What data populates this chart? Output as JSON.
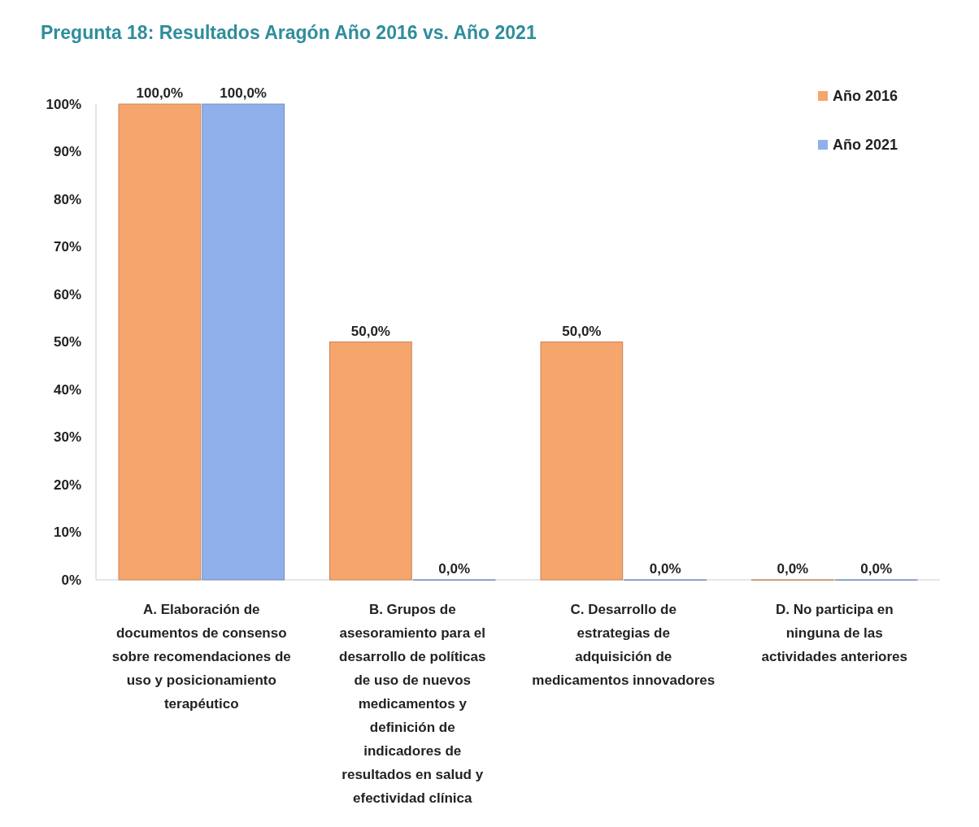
{
  "chart_data": {
    "type": "bar",
    "title": "Pregunta 18: Resultados Aragón Año 2016 vs. Año 2021",
    "categories": [
      "A. Elaboración de documentos de consenso sobre recomendaciones de uso y posicionamiento terapéutico",
      "B. Grupos de asesoramiento para el desarrollo de políticas de uso de nuevos medicamentos y definición de indicadores de resultados en salud y efectividad clínica",
      "C. Desarrollo de estrategias de adquisición de medicamentos innovadores",
      "D. No participa en ninguna de las actividades anteriores"
    ],
    "series": [
      {
        "name": "Año 2016",
        "color": "#f6a56c",
        "values": [
          100,
          50,
          50,
          0
        ],
        "value_labels": [
          "100,0%",
          "50,0%",
          "50,0%",
          "0,0%"
        ]
      },
      {
        "name": "Año 2021",
        "color": "#8fb0ea",
        "values": [
          100,
          0,
          0,
          0
        ],
        "value_labels": [
          "100,0%",
          "0,0%",
          "0,0%",
          "0,0%"
        ]
      }
    ],
    "ylim": [
      0,
      100
    ],
    "yticks": [
      {
        "value": 0,
        "label": "0%"
      },
      {
        "value": 10,
        "label": "10%"
      },
      {
        "value": 20,
        "label": "20%"
      },
      {
        "value": 30,
        "label": "30%"
      },
      {
        "value": 40,
        "label": "40%"
      },
      {
        "value": 50,
        "label": "50%"
      },
      {
        "value": 60,
        "label": "60%"
      },
      {
        "value": 70,
        "label": "70%"
      },
      {
        "value": 80,
        "label": "80%"
      },
      {
        "value": 90,
        "label": "90%"
      },
      {
        "value": 100,
        "label": "100%"
      }
    ],
    "grid": false,
    "legend": "top right"
  }
}
